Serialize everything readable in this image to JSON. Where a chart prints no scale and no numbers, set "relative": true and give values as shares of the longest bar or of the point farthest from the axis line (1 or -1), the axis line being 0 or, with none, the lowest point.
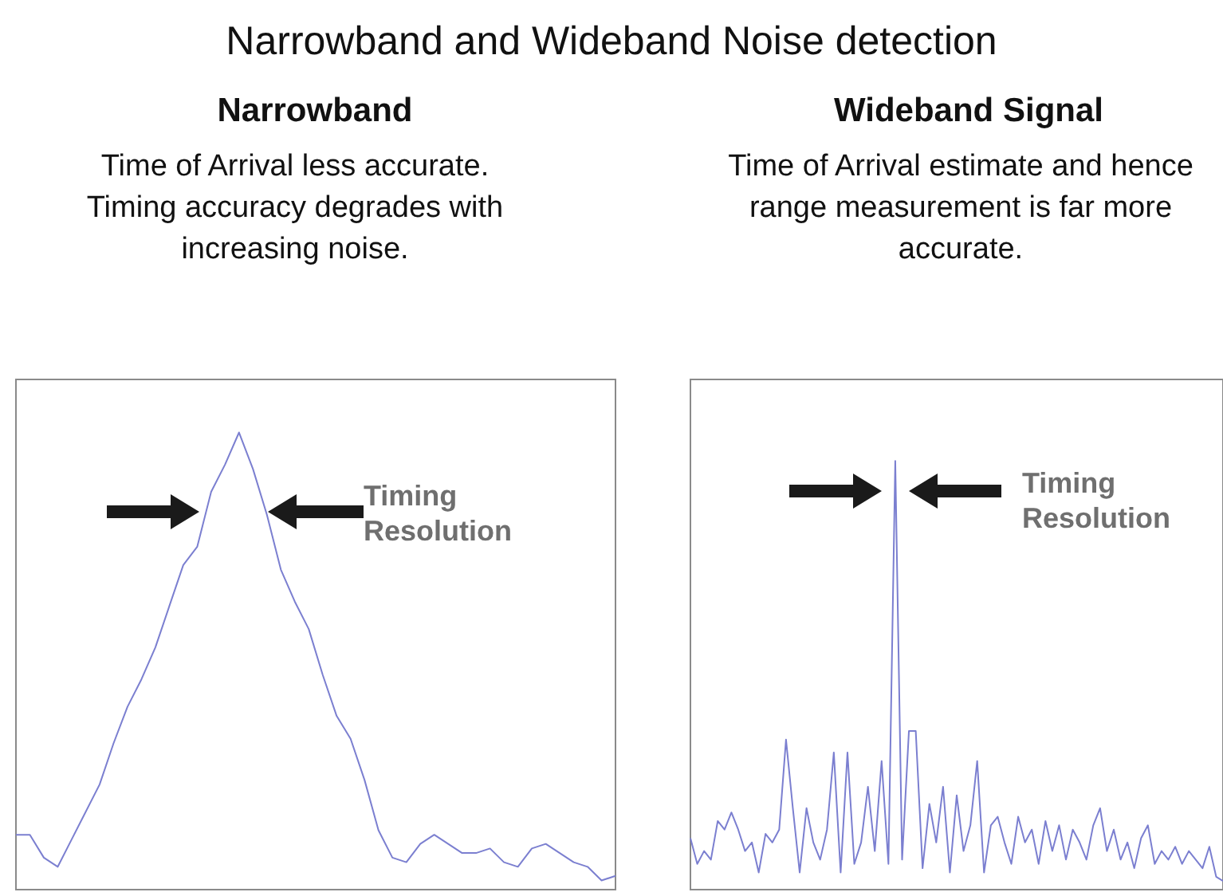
{
  "chart_data": [
    {
      "type": "line",
      "title": "Narrowband",
      "subtitle": "Time of Arrival less accurate. Timing accuracy degrades with increasing noise.",
      "annotations": [
        "Narrowband and Wideband Noise detection",
        "Timing Resolution"
      ],
      "relative": true,
      "tick_labels": false,
      "categories": [
        null,
        null,
        null,
        null,
        null,
        null,
        null,
        null,
        null,
        null,
        null,
        null,
        null,
        null,
        null,
        null,
        null,
        null,
        null,
        null,
        null,
        null,
        null,
        null,
        null,
        null,
        null,
        null,
        null,
        null,
        null,
        null,
        null,
        null,
        null,
        null,
        null,
        null,
        null,
        null,
        null,
        null,
        null,
        null
      ],
      "series": [
        {
          "color": "#7b7fd0",
          "values": [
            0.12,
            0.12,
            0.07,
            0.05,
            0.11,
            0.17,
            0.23,
            0.32,
            0.4,
            0.46,
            0.53,
            0.62,
            0.71,
            0.75,
            0.87,
            0.93,
            1,
            0.92,
            0.82,
            0.7,
            0.63,
            0.57,
            0.47,
            0.38,
            0.33,
            0.24,
            0.13,
            0.07,
            0.06,
            0.1,
            0.12,
            0.1,
            0.08,
            0.08,
            0.09,
            0.06,
            0.05,
            0.09,
            0.1,
            0.08,
            0.06,
            0.05,
            0.02,
            0.03
          ]
        }
      ]
    },
    {
      "type": "line",
      "title": "Wideband Signal",
      "subtitle": "Time of Arrival estimate and hence range measurement is far more accurate.",
      "annotations": [
        "Timing Resolution"
      ],
      "relative": true,
      "tick_labels": false,
      "categories": [
        null,
        null,
        null,
        null,
        null,
        null,
        null,
        null,
        null,
        null,
        null,
        null,
        null,
        null,
        null,
        null,
        null,
        null,
        null,
        null,
        null,
        null,
        null,
        null,
        null,
        null,
        null,
        null,
        null,
        null,
        null,
        null,
        null,
        null,
        null,
        null,
        null,
        null,
        null,
        null,
        null,
        null,
        null,
        null,
        null,
        null,
        null,
        null,
        null,
        null,
        null,
        null,
        null,
        null,
        null,
        null,
        null,
        null,
        null,
        null,
        null,
        null,
        null,
        null,
        null,
        null,
        null,
        null,
        null,
        null,
        null,
        null,
        null,
        null,
        null,
        null,
        null,
        null,
        null
      ],
      "series": [
        {
          "color": "#7b7fd0",
          "values": [
            0.12,
            0.06,
            0.09,
            0.07,
            0.16,
            0.14,
            0.18,
            0.14,
            0.09,
            0.11,
            0.04,
            0.13,
            0.11,
            0.14,
            0.35,
            0.19,
            0.04,
            0.19,
            0.11,
            0.07,
            0.14,
            0.32,
            0.04,
            0.32,
            0.06,
            0.11,
            0.24,
            0.09,
            0.3,
            0.06,
            1,
            0.07,
            0.37,
            0.37,
            0.05,
            0.2,
            0.11,
            0.24,
            0.04,
            0.22,
            0.09,
            0.15,
            0.3,
            0.04,
            0.15,
            0.17,
            0.11,
            0.06,
            0.17,
            0.11,
            0.14,
            0.06,
            0.16,
            0.09,
            0.15,
            0.07,
            0.14,
            0.11,
            0.07,
            0.15,
            0.19,
            0.09,
            0.14,
            0.07,
            0.11,
            0.05,
            0.12,
            0.15,
            0.06,
            0.09,
            0.07,
            0.1,
            0.06,
            0.09,
            0.07,
            0.05,
            0.1,
            0.03,
            0.02
          ]
        }
      ]
    }
  ]
}
